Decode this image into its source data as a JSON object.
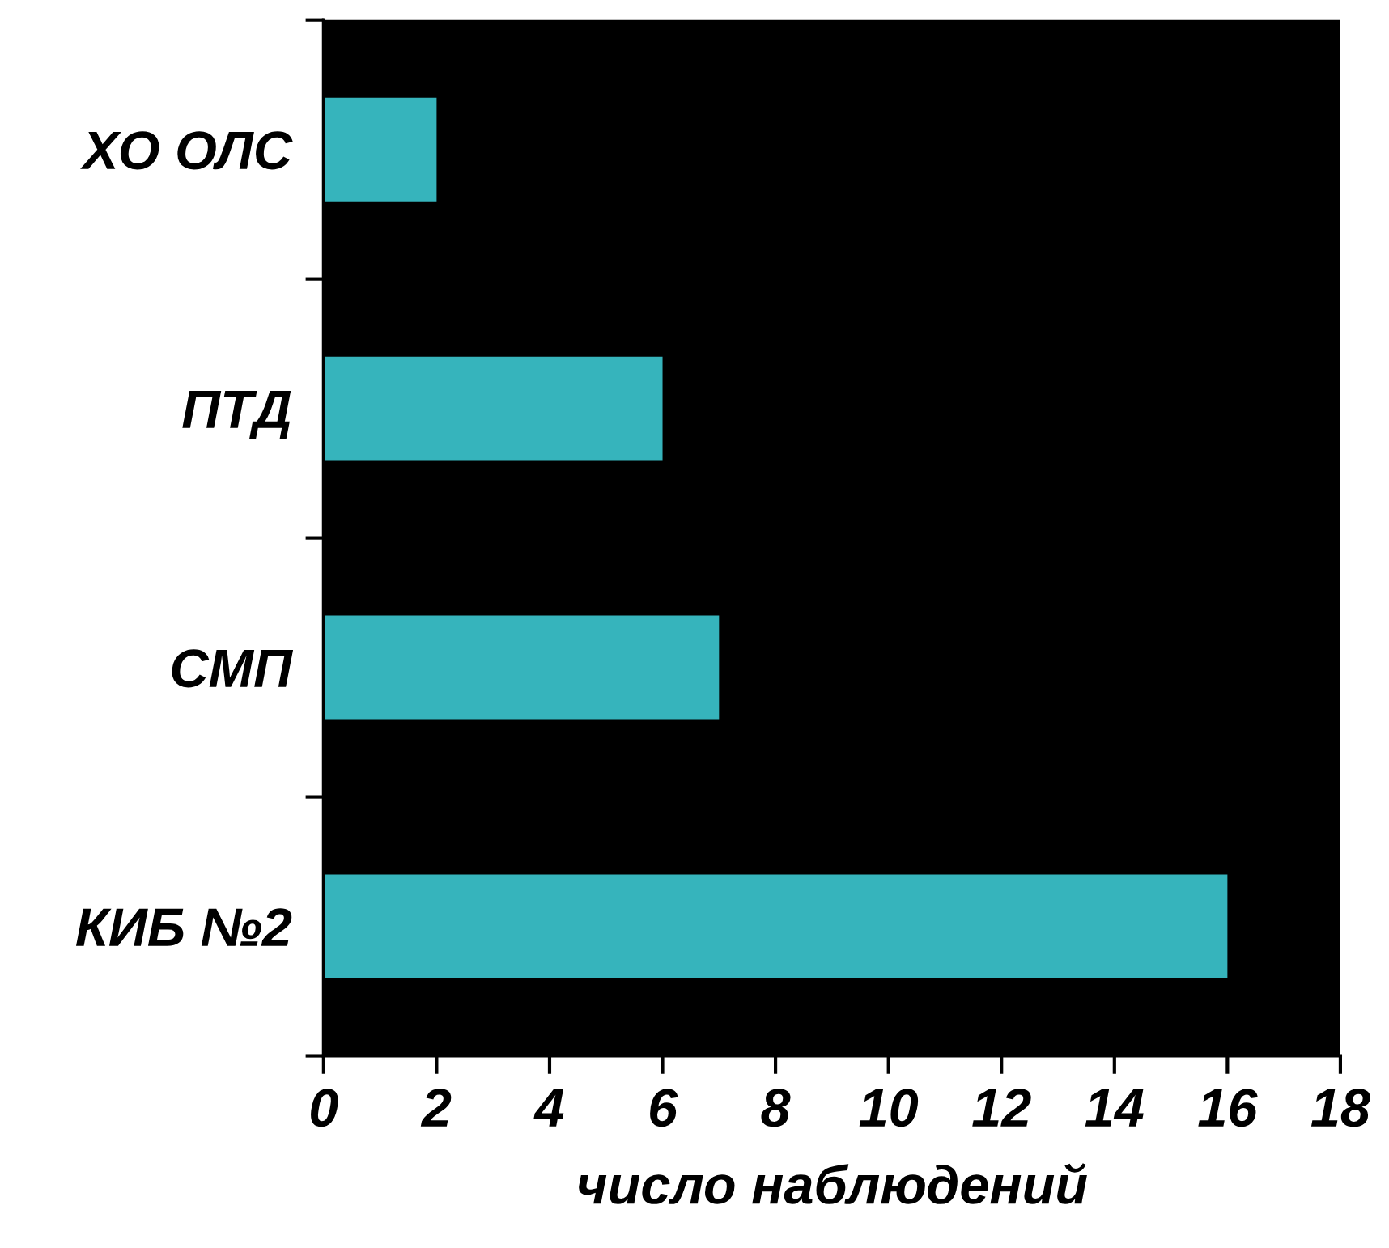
{
  "chart_data": {
    "type": "bar",
    "orientation": "horizontal",
    "xlabel": "число наблюдений",
    "categories": [
      "ХО ОЛС",
      "ПТД",
      "СМП",
      "КИБ №2"
    ],
    "values": [
      2,
      6,
      7,
      16
    ],
    "color": "#36b4bc",
    "xlim": [
      0,
      18
    ],
    "xticks": [
      0,
      2,
      4,
      6,
      8,
      10,
      12,
      14,
      16,
      18
    ],
    "grid": false
  }
}
